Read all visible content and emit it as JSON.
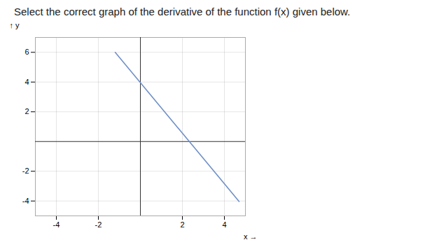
{
  "chart_data": {
    "type": "line",
    "title": "Select the correct graph of the derivative of the function f(x) given below.",
    "xlabel": "x",
    "ylabel": "y",
    "x": [
      -1.2,
      4.7
    ],
    "values": [
      6,
      -4.03
    ],
    "color": "#7090c8",
    "xlim": [
      -5,
      5
    ],
    "ylim": [
      -5,
      7
    ],
    "xticks": [
      -4,
      -2,
      2,
      4
    ],
    "yticks": [
      -4,
      -2,
      2,
      4,
      6
    ],
    "grid": true
  }
}
